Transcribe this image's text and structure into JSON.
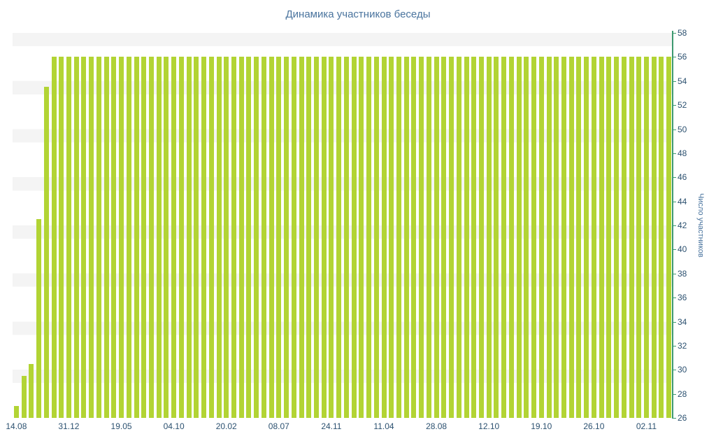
{
  "title": "Динамика участников беседы",
  "colors": {
    "bar": "#b2d434",
    "axis": "#3d9970",
    "tick_label": "#2c5170",
    "title": "#4a749e",
    "band": "#f4f4f4"
  },
  "chart_data": {
    "type": "bar",
    "title": "Динамика участников беседы",
    "xlabel": "",
    "ylabel": "Число участников",
    "ylim": [
      26,
      58
    ],
    "ytick_step": 2,
    "grid": "banded-background",
    "legend": "none",
    "y_axis_side": "right",
    "y_ticks": [
      58,
      56,
      54,
      52,
      50,
      48,
      46,
      44,
      42,
      40,
      38,
      36,
      34,
      32,
      30,
      28,
      26
    ],
    "x_tick_labels": [
      "14.08",
      "31.12",
      "19.05",
      "04.10",
      "20.02",
      "08.07",
      "24.11",
      "11.04",
      "28.08",
      "12.10",
      "19.10",
      "26.10",
      "02.11"
    ],
    "bars_per_label": 7,
    "values": [
      27,
      29.5,
      30.5,
      42.5,
      53.5,
      56,
      56,
      56,
      56,
      56,
      56,
      56,
      56,
      56,
      56,
      56,
      56,
      56,
      56,
      56,
      56,
      56,
      56,
      56,
      56,
      56,
      56,
      56,
      56,
      56,
      56,
      56,
      56,
      56,
      56,
      56,
      56,
      56,
      56,
      56,
      56,
      56,
      56,
      56,
      56,
      56,
      56,
      56,
      56,
      56,
      56,
      56,
      56,
      56,
      56,
      56,
      56,
      56,
      56,
      56,
      56,
      56,
      56,
      56,
      56,
      56,
      56,
      56,
      56,
      56,
      56,
      56,
      56,
      56,
      56,
      56,
      56,
      56,
      56,
      56,
      56,
      56,
      56,
      56,
      56,
      56,
      56,
      56
    ]
  }
}
